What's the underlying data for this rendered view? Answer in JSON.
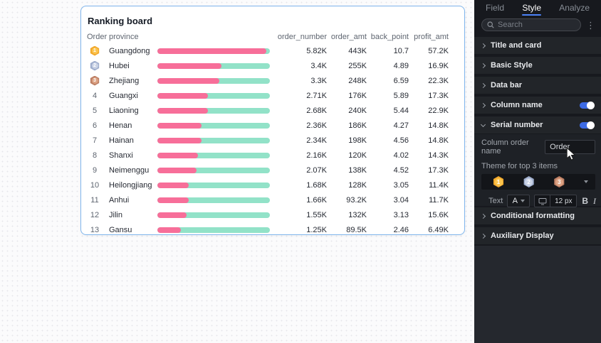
{
  "card": {
    "title": "Ranking board",
    "columns": [
      "Order",
      "province",
      "order_number",
      "order_amt",
      "back_point",
      "profit_amt"
    ],
    "rows": [
      {
        "rank": "1",
        "medal": "gold",
        "province": "Guangdong",
        "bar_pct": 97,
        "order_number": "5.82K",
        "order_amt": "443K",
        "back_point": "10.7",
        "profit_amt": "57.2K"
      },
      {
        "rank": "2",
        "medal": "silver",
        "province": "Hubei",
        "bar_pct": 57,
        "order_number": "3.4K",
        "order_amt": "255K",
        "back_point": "4.89",
        "profit_amt": "16.9K"
      },
      {
        "rank": "3",
        "medal": "bronze",
        "province": "Zhejiang",
        "bar_pct": 55,
        "order_number": "3.3K",
        "order_amt": "248K",
        "back_point": "6.59",
        "profit_amt": "22.3K"
      },
      {
        "rank": "4",
        "medal": null,
        "province": "Guangxi",
        "bar_pct": 45,
        "order_number": "2.71K",
        "order_amt": "176K",
        "back_point": "5.89",
        "profit_amt": "17.3K"
      },
      {
        "rank": "5",
        "medal": null,
        "province": "Liaoning",
        "bar_pct": 45,
        "order_number": "2.68K",
        "order_amt": "240K",
        "back_point": "5.44",
        "profit_amt": "22.9K"
      },
      {
        "rank": "6",
        "medal": null,
        "province": "Henan",
        "bar_pct": 39,
        "order_number": "2.36K",
        "order_amt": "186K",
        "back_point": "4.27",
        "profit_amt": "14.8K"
      },
      {
        "rank": "7",
        "medal": null,
        "province": "Hainan",
        "bar_pct": 39,
        "order_number": "2.34K",
        "order_amt": "198K",
        "back_point": "4.56",
        "profit_amt": "14.8K"
      },
      {
        "rank": "8",
        "medal": null,
        "province": "Shanxi",
        "bar_pct": 36,
        "order_number": "2.16K",
        "order_amt": "120K",
        "back_point": "4.02",
        "profit_amt": "14.3K"
      },
      {
        "rank": "9",
        "medal": null,
        "province": "Neimenggu",
        "bar_pct": 35,
        "order_number": "2.07K",
        "order_amt": "138K",
        "back_point": "4.52",
        "profit_amt": "17.3K"
      },
      {
        "rank": "10",
        "medal": null,
        "province": "Heilongjiang",
        "bar_pct": 28,
        "order_number": "1.68K",
        "order_amt": "128K",
        "back_point": "3.05",
        "profit_amt": "11.4K"
      },
      {
        "rank": "11",
        "medal": null,
        "province": "Anhui",
        "bar_pct": 28,
        "order_number": "1.66K",
        "order_amt": "93.2K",
        "back_point": "3.04",
        "profit_amt": "11.7K"
      },
      {
        "rank": "12",
        "medal": null,
        "province": "Jilin",
        "bar_pct": 26,
        "order_number": "1.55K",
        "order_amt": "132K",
        "back_point": "3.13",
        "profit_amt": "15.6K"
      },
      {
        "rank": "13",
        "medal": null,
        "province": "Gansu",
        "bar_pct": 21,
        "order_number": "1.25K",
        "order_amt": "89.5K",
        "back_point": "2.46",
        "profit_amt": "6.49K"
      }
    ]
  },
  "sidebar": {
    "tabs": [
      {
        "label": "Field",
        "active": false
      },
      {
        "label": "Style",
        "active": true
      },
      {
        "label": "Analyze",
        "active": false
      }
    ],
    "search_placeholder": "Search",
    "sections_top": [
      {
        "label": "Title and card",
        "expanded": false,
        "toggle": null
      },
      {
        "label": "Basic Style",
        "expanded": false,
        "toggle": null
      },
      {
        "label": "Data bar",
        "expanded": false,
        "toggle": null
      },
      {
        "label": "Column name",
        "expanded": false,
        "toggle": "on"
      },
      {
        "label": "Serial number",
        "expanded": true,
        "toggle": "on"
      }
    ],
    "panel": {
      "column_order_label": "Column order name",
      "column_order_value": "Order",
      "theme_label": "Theme for top 3 items",
      "medals": [
        {
          "num": "1",
          "theme": "gold"
        },
        {
          "num": "2",
          "theme": "silver"
        },
        {
          "num": "3",
          "theme": "bronze"
        }
      ],
      "text_label": "Text",
      "font_color_letter": "A",
      "font_size": "12 px",
      "bold_label": "B",
      "italic_label": "I"
    },
    "sections_bottom": [
      {
        "label": "Conditional formatting",
        "expanded": false,
        "toggle": null
      },
      {
        "label": "Auxiliary Display",
        "expanded": false,
        "toggle": null
      }
    ]
  },
  "colors": {
    "bar_fill": "#F76E99",
    "bar_track": "#92E2C8",
    "accent_blue": "#4C82F7",
    "toggle_on": "#3D6BE5",
    "card_border": "#7FB5EC",
    "medals": {
      "gold": {
        "outer": "#F2A92C",
        "inner": "#FBC44F"
      },
      "silver": {
        "outer": "#9FAECD",
        "inner": "#C9D2E5"
      },
      "bronze": {
        "outer": "#BE8065",
        "inner": "#DCA283"
      }
    }
  }
}
